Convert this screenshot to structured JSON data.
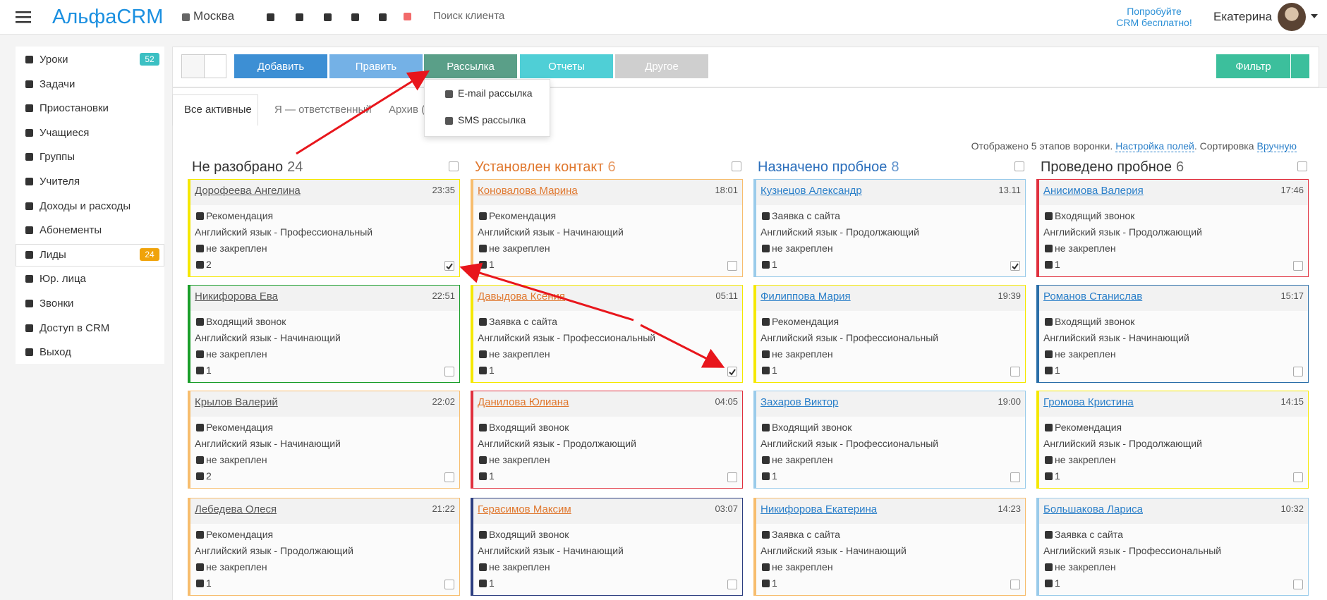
{
  "header": {
    "logo": "АльфаCRM",
    "city": "Москва",
    "search": "Поиск клиента",
    "promo": [
      "Попробуйте",
      "CRM бесплатно!"
    ],
    "user": "Екатерина"
  },
  "sidebar": [
    {
      "label": "Уроки",
      "badge": 52,
      "badge_color": "#3cc0c3"
    },
    {
      "label": "Задачи"
    },
    {
      "label": "Приостановки"
    },
    {
      "label": "Учащиеся"
    },
    {
      "label": "Группы"
    },
    {
      "label": "Учителя"
    },
    {
      "label": "Доходы и расходы"
    },
    {
      "label": "Абонементы"
    },
    {
      "label": "Лиды",
      "badge": 24,
      "badge_color": "#f0a30a",
      "active": true
    },
    {
      "label": "Юр. лица"
    },
    {
      "label": "Звонки"
    },
    {
      "label": "Доступ в CRM"
    },
    {
      "label": "Выход"
    }
  ],
  "toolbar": [
    {
      "label": "Добавить",
      "color": "#3d8fd4"
    },
    {
      "label": "Править",
      "color": "#74b1e6"
    },
    {
      "label": "Рассылка",
      "color": "#5a9f88"
    },
    {
      "label": "Отчеты",
      "color": "#4fcfd6"
    },
    {
      "label": "Другое",
      "color": "#cfcfcf"
    }
  ],
  "filter": {
    "label": "Фильтр",
    "color": "#3cbf9c"
  },
  "dropdown": [
    "E-mail рассылка",
    "SMS рассылка"
  ],
  "tabs": [
    "Все активные",
    "Я — ответственный",
    "Архив ("
  ],
  "info": {
    "text": "Отображено 5 этапов воронки.",
    "link1": "Настройка полей",
    "text2": ". Сортировка",
    "link2": "Вручную"
  },
  "columns": [
    {
      "title": "Не разобрано",
      "count": 24,
      "color": "#333333",
      "link_color": "#555555",
      "cards": [
        {
          "name": "Дорофеева Ангелина",
          "time": "23:35",
          "source": "Рекомендация",
          "course": "Английский язык - Профессиональный",
          "status": "не закреплен",
          "comments": 2,
          "checked": true,
          "border": "#f5e800"
        },
        {
          "name": "Никифорова Ева",
          "time": "22:51",
          "source": "Входящий звонок",
          "course": "Английский язык - Начинающий",
          "status": "не закреплен",
          "comments": 1,
          "checked": false,
          "border": "#1a9e2a"
        },
        {
          "name": "Крылов Валерий",
          "time": "22:02",
          "source": "Рекомендация",
          "course": "Английский язык - Начинающий",
          "status": "не закреплен",
          "comments": 2,
          "checked": false,
          "border": "#f7bd6e"
        },
        {
          "name": "Лебедева Олеся",
          "time": "21:22",
          "source": "Рекомендация",
          "course": "Английский язык - Продолжающий",
          "status": "не закреплен",
          "comments": 1,
          "checked": false,
          "border": "#f7bd6e"
        }
      ]
    },
    {
      "title": "Установлен контакт",
      "count": 6,
      "color": "#e0782f",
      "link_color": "#e0782f",
      "cards": [
        {
          "name": "Коновалова Марина",
          "time": "18:01",
          "source": "Рекомендация",
          "course": "Английский язык - Начинающий",
          "status": "не закреплен",
          "comments": 1,
          "checked": false,
          "border": "#f7bd6e"
        },
        {
          "name": "Давыдова Ксения",
          "time": "05:11",
          "source": "Заявка с сайта",
          "course": "Английский язык - Профессиональный",
          "status": "не закреплен",
          "comments": 1,
          "checked": true,
          "border": "#f5e800"
        },
        {
          "name": "Данилова Юлиана",
          "time": "04:05",
          "source": "Входящий звонок",
          "course": "Английский язык - Продолжающий",
          "status": "не закреплен",
          "comments": 1,
          "checked": false,
          "border": "#e0303e"
        },
        {
          "name": "Герасимов Максим",
          "time": "03:07",
          "source": "Входящий звонок",
          "course": "Английский язык - Начинающий",
          "status": "не закреплен",
          "comments": 1,
          "checked": false,
          "border": "#2c3e80"
        }
      ]
    },
    {
      "title": "Назначено пробное",
      "count": 8,
      "color": "#2a6ebb",
      "link_color": "#2a7fc9",
      "cards": [
        {
          "name": "Кузнецов Александр",
          "time": "13.11",
          "source": "Заявка с сайта",
          "course": "Английский язык - Продолжающий",
          "status": "не закреплен",
          "comments": 1,
          "checked": true,
          "border": "#9acbea"
        },
        {
          "name": "Филиппова Мария",
          "time": "19:39",
          "source": "Рекомендация",
          "course": "Английский язык - Профессиональный",
          "status": "не закреплен",
          "comments": 1,
          "checked": false,
          "border": "#f5e800"
        },
        {
          "name": "Захаров Виктор",
          "time": "19:00",
          "source": "Входящий звонок",
          "course": "Английский язык - Профессиональный",
          "status": "не закреплен",
          "comments": 1,
          "checked": false,
          "border": "#9acbea"
        },
        {
          "name": "Никифорова Екатерина",
          "time": "14:23",
          "source": "Заявка с сайта",
          "course": "Английский язык - Начинающий",
          "status": "не закреплен",
          "comments": 1,
          "checked": false,
          "border": "#f7bd6e"
        }
      ]
    },
    {
      "title": "Проведено пробное",
      "count": 6,
      "color": "#333333",
      "link_color": "#2a7fc9",
      "cards": [
        {
          "name": "Анисимова Валерия",
          "time": "17:46",
          "source": "Входящий звонок",
          "course": "Английский язык - Продолжающий",
          "status": "не закреплен",
          "comments": 1,
          "checked": false,
          "border": "#e0303e"
        },
        {
          "name": "Романов Станислав",
          "time": "15:17",
          "source": "Входящий звонок",
          "course": "Английский язык - Начинающий",
          "status": "не закреплен",
          "comments": 1,
          "checked": false,
          "border": "#2a6ea8"
        },
        {
          "name": "Громова Кристина",
          "time": "14:15",
          "source": "Рекомендация",
          "course": "Английский язык - Продолжающий",
          "status": "не закреплен",
          "comments": 1,
          "checked": false,
          "border": "#f5e800"
        },
        {
          "name": "Большакова Лариса",
          "time": "10:32",
          "source": "Заявка с сайта",
          "course": "Английский язык - Профессиональный",
          "status": "не закреплен",
          "comments": 1,
          "checked": false,
          "border": "#9acbea"
        }
      ]
    }
  ]
}
